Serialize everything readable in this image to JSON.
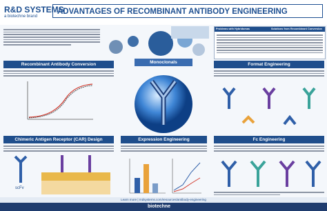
{
  "header": {
    "brand": "R&D SYSTEMS",
    "brand_sub": "a biotechne brand",
    "title": "ADVANTAGES OF RECOMBINANT ANTIBODY ENGINEERING"
  },
  "table": {
    "headers": [
      "Problems with Hybridomas",
      "Solutions from Recombinant Conversion"
    ]
  },
  "sections": [
    "Recombinant Antibody Conversion",
    "Monoclonals",
    "Format Engineering",
    "Chimeric Antigen Receptor (CAR) Design",
    "Expression Engineering",
    "Fc Engineering"
  ],
  "labels": {
    "scfv": "scFv"
  },
  "footer": {
    "link": "Learn more | rndsystems.com/resources/antibody-engineering",
    "brand": "biotechne"
  }
}
